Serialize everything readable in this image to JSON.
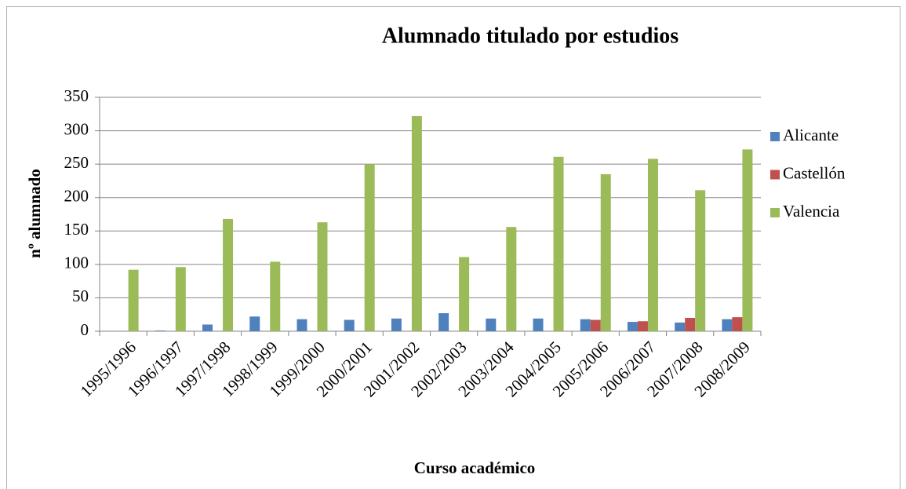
{
  "chart_data": {
    "type": "bar",
    "title": "Alumnado titulado por estudios",
    "x_label": "Curso académico",
    "y_label": "nº alumnado",
    "categories": [
      "1995/1996",
      "1996/1997",
      "1997/1998",
      "1998/1999",
      "1999/2000",
      "2000/2001",
      "2001/2002",
      "2002/2003",
      "2003/2004",
      "2004/2005",
      "2005/2006",
      "2006/2007",
      "2007/2008",
      "2008/2009"
    ],
    "series": [
      {
        "name": "Alicante",
        "color": "#4f81bd",
        "values": [
          0,
          1,
          10,
          22,
          18,
          17,
          19,
          27,
          19,
          19,
          18,
          14,
          13,
          18
        ]
      },
      {
        "name": "Castellón",
        "color": "#c0504d",
        "values": [
          0,
          0,
          0,
          0,
          0,
          0,
          0,
          0,
          0,
          0,
          17,
          15,
          20,
          21
        ]
      },
      {
        "name": "Valencia",
        "color": "#9bbb59",
        "values": [
          92,
          96,
          168,
          104,
          163,
          250,
          322,
          111,
          156,
          261,
          235,
          258,
          211,
          272
        ]
      }
    ],
    "ylim": [
      0,
      350
    ],
    "yticks": [
      0,
      50,
      100,
      150,
      200,
      250,
      300,
      350
    ],
    "grid": true,
    "legend": "right"
  }
}
